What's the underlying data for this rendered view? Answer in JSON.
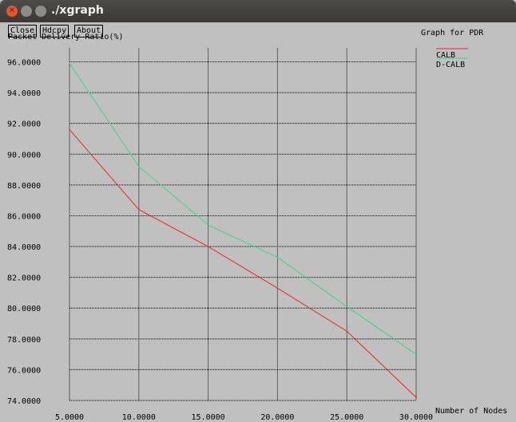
{
  "window": {
    "title": "./xgraph",
    "close_glyph": "✕"
  },
  "toolbar": {
    "close_label": "Close",
    "hdcpy_label": "Hdcpy",
    "about_label": "About"
  },
  "graph": {
    "title": "Graph for PDR"
  },
  "colors": {
    "background": "#c0c0c0",
    "calb": "#e8262a",
    "dcalb": "#36d68a"
  },
  "chart_data": {
    "type": "line",
    "title": "Graph for PDR",
    "xlabel": "Number of Nodes",
    "ylabel": "Packet Delivery Ratio(%)",
    "x": [
      5,
      10,
      15,
      20,
      25,
      30
    ],
    "xlim": [
      5,
      30
    ],
    "ylim": [
      74,
      96
    ],
    "x_ticks": [
      5,
      10,
      15,
      20,
      25,
      30
    ],
    "x_tick_labels": [
      "5.0000",
      "10.0000",
      "15.0000",
      "20.0000",
      "25.0000",
      "30.0000"
    ],
    "y_ticks": [
      74,
      76,
      78,
      80,
      82,
      84,
      86,
      88,
      90,
      92,
      94,
      96
    ],
    "y_tick_labels": [
      "74.0000",
      "76.0000",
      "78.0000",
      "80.0000",
      "82.0000",
      "84.0000",
      "86.0000",
      "88.0000",
      "90.0000",
      "92.0000",
      "94.0000",
      "96.0000"
    ],
    "grid": true,
    "legend_position": "top-right",
    "series": [
      {
        "name": "CALB",
        "color": "#e8262a",
        "values": [
          91.6,
          86.4,
          84.0,
          81.3,
          78.5,
          74.2
        ]
      },
      {
        "name": "D-CALB",
        "color": "#36d68a",
        "values": [
          95.9,
          89.2,
          85.4,
          83.3,
          80.1,
          77.0
        ]
      }
    ]
  }
}
